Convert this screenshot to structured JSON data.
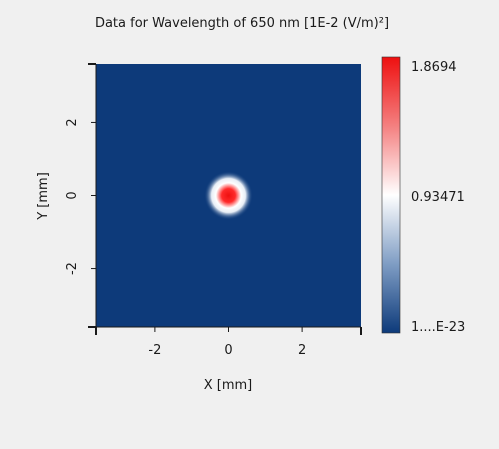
{
  "chart_data": {
    "type": "heatmap",
    "title": "Data for Wavelength of 650 nm  [1E-2 (V/m)²]",
    "xlabel": "X [mm]",
    "ylabel": "Y [mm]",
    "xlim": [
      -3.6,
      3.6
    ],
    "ylim": [
      -3.6,
      3.6
    ],
    "xticks": [
      "-2",
      "0",
      "2"
    ],
    "xtick_values": [
      -2,
      0,
      2
    ],
    "yticks": [
      "2",
      "0",
      "-2"
    ],
    "ytick_values": [
      2,
      0,
      -2
    ],
    "spot": {
      "x": 0,
      "y": 0,
      "peak": 1.8694,
      "sigma_mm": 0.22
    },
    "colorbar": {
      "max_label": "1.8694",
      "mid_label": "0.93471",
      "min_label": "1....E-23",
      "max": 1.8694,
      "mid": 0.93471,
      "colors": {
        "high": "#ee1010",
        "mid": "#ffffff",
        "low": "#0d3a7a"
      }
    },
    "grid": false
  }
}
